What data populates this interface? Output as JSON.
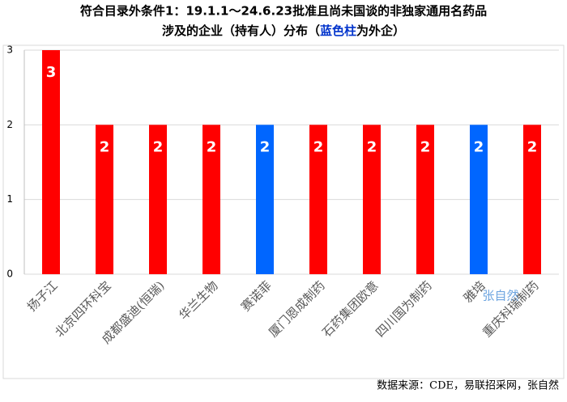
{
  "chart_data": {
    "type": "bar",
    "title": "符合目录外条件1：19.1.1～24.6.23批准且尚未国谈的非独家通用名药品",
    "subtitle_parts": [
      "涉及的企业（持有人）分布（",
      "蓝色柱",
      "为外企）"
    ],
    "categories": [
      "扬子江",
      "北京四环科宝",
      "成都盛迪(恒瑞)",
      "华兰生物",
      "赛诺菲",
      "厦门恩成制药",
      "石药集团欧意",
      "四川国为制药",
      "雅培",
      "重庆科瑞制药"
    ],
    "values": [
      3,
      2,
      2,
      2,
      2,
      2,
      2,
      2,
      2,
      2
    ],
    "colors": [
      "#ff0000",
      "#ff0000",
      "#ff0000",
      "#ff0000",
      "#0066ff",
      "#ff0000",
      "#ff0000",
      "#ff0000",
      "#0066ff",
      "#ff0000"
    ],
    "ylim": [
      0,
      3
    ],
    "yticks": [
      0,
      1,
      2,
      3
    ],
    "grid": true,
    "watermark": "张自然",
    "source": "数据来源：CDE，易联招采网，张自然"
  }
}
